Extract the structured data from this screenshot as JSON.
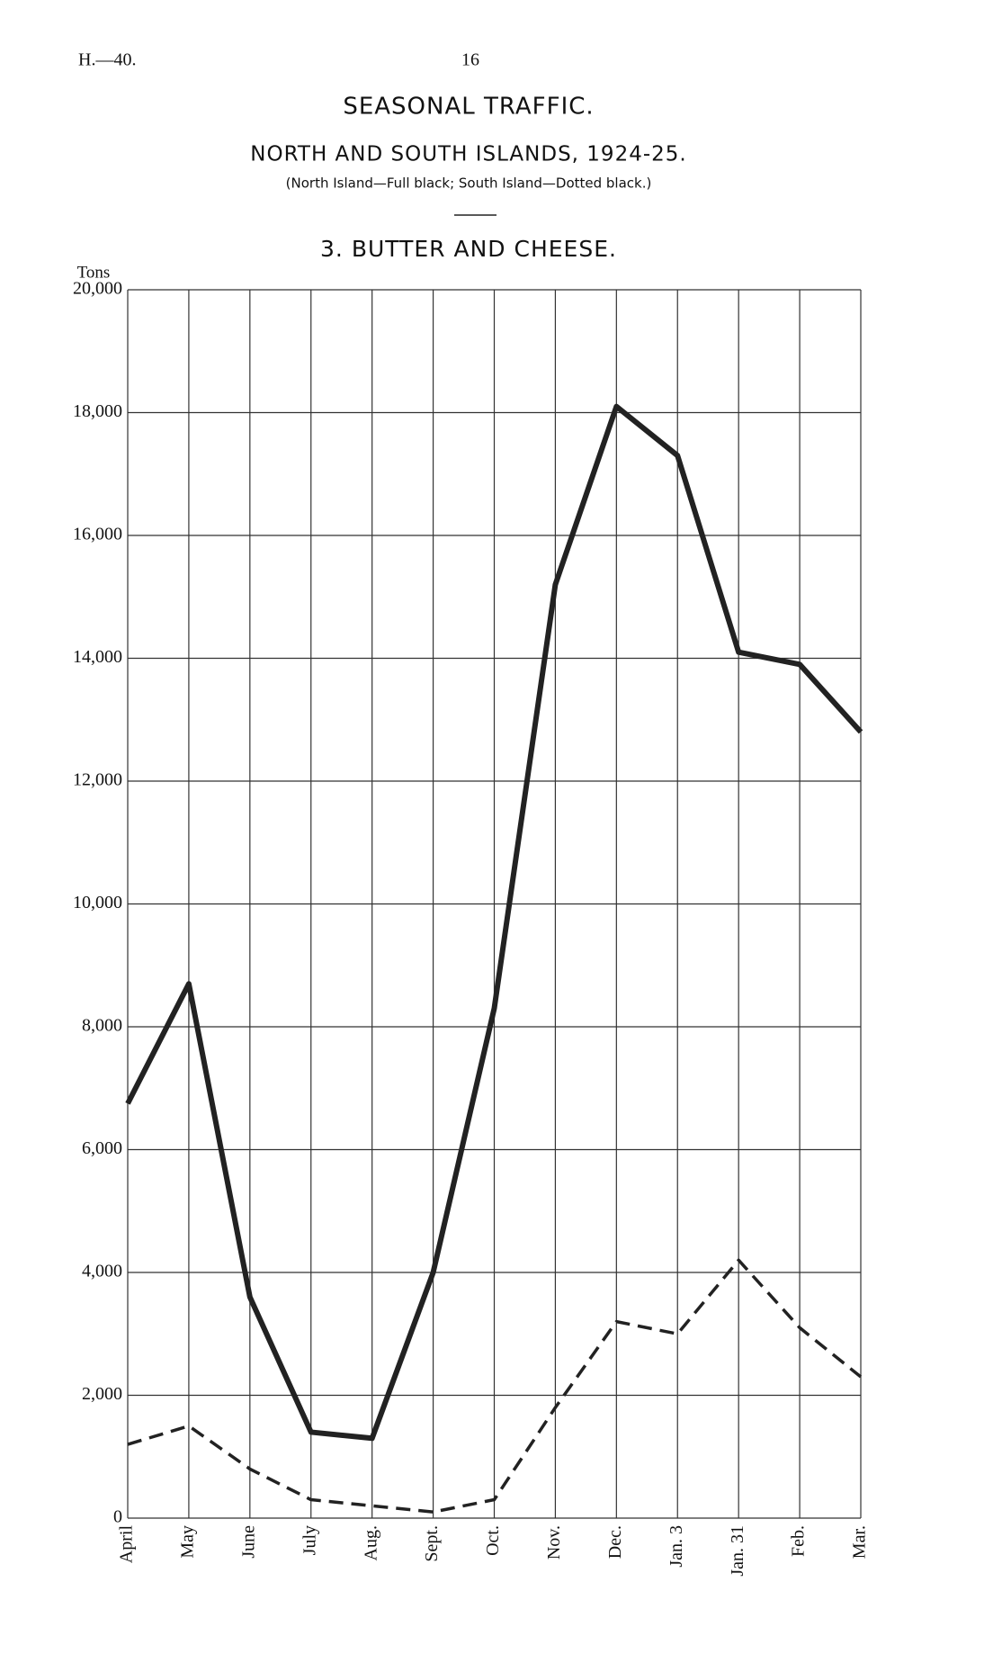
{
  "header": {
    "left": "H.—40.",
    "page": "16"
  },
  "chart_data": {
    "type": "line",
    "title": "SEASONAL TRAFFIC.",
    "subtitle": "NORTH AND SOUTH ISLANDS, 1924-25.",
    "note": "(North Island—Full black; South Island—Dotted black.)",
    "chart_title": "3. BUTTER AND CHEESE.",
    "y_label": "Tons",
    "categories": [
      "April",
      "May",
      "June",
      "July",
      "Aug.",
      "Sept.",
      "Oct.",
      "Nov.",
      "Dec.",
      "Jan. 3",
      "Jan. 31",
      "Feb.",
      "Mar."
    ],
    "series": [
      {
        "color": "#222222",
        "dashed": false,
        "values": [
          6750,
          8700,
          3600,
          1400,
          1300,
          4000,
          8300,
          15200,
          18100,
          17300,
          14100,
          13900,
          12800
        ]
      },
      {
        "color": "#222222",
        "dashed": true,
        "values": [
          1200,
          1500,
          800,
          300,
          200,
          100,
          300,
          1800,
          3200,
          3000,
          4200,
          3100,
          2300
        ]
      }
    ],
    "ylim": [
      0,
      20000
    ],
    "yticks": [
      0,
      {
        "value": 2000,
        "label": "2,000"
      },
      {
        "value": 4000,
        "label": "4,000"
      },
      {
        "value": 6000,
        "label": "6,000"
      },
      {
        "value": 8000,
        "label": "8,000"
      },
      {
        "value": 10000,
        "label": "10,000"
      },
      {
        "value": 12000,
        "label": "12,000"
      },
      {
        "value": 14000,
        "label": "14,000"
      },
      {
        "value": 16000,
        "label": "16,000"
      },
      {
        "value": 18000,
        "label": "18,000"
      },
      {
        "value": 20000,
        "label": "20,000"
      }
    ],
    "grid": true
  }
}
